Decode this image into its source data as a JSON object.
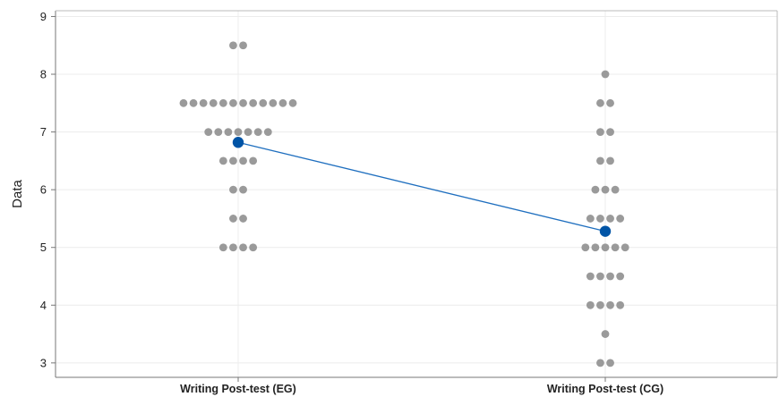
{
  "chart_data": {
    "type": "scatter",
    "subtype": "individual-value-plot",
    "title": "",
    "xlabel": "",
    "ylabel": "Data",
    "categories": [
      "Writing Post-test (EG)",
      "Writing Post-test (CG)"
    ],
    "ylim": [
      2.75,
      9.1
    ],
    "yticks": [
      3,
      4,
      5,
      6,
      7,
      8,
      9
    ],
    "grid": true,
    "series": [
      {
        "category": "Writing Post-test (EG)",
        "values": [
          8.5,
          8.5,
          7.5,
          7.5,
          7.5,
          7.5,
          7.5,
          7.5,
          7.5,
          7.5,
          7.5,
          7.5,
          7.5,
          7.5,
          7,
          7,
          7,
          7,
          7,
          7,
          7,
          6.5,
          6.5,
          6.5,
          6.5,
          6,
          6,
          5.5,
          5.5,
          5,
          5,
          5,
          5
        ]
      },
      {
        "category": "Writing Post-test (CG)",
        "values": [
          8,
          7.5,
          7.5,
          7,
          7,
          6.5,
          6.5,
          6,
          6,
          6,
          5.5,
          5.5,
          5.5,
          5.5,
          5,
          5,
          5,
          5,
          5,
          4.5,
          4.5,
          4.5,
          4.5,
          4,
          4,
          4,
          4,
          3.5,
          3,
          3
        ]
      }
    ],
    "means": [
      6.82,
      5.28
    ],
    "colors": {
      "points": "#9a9a9a",
      "mean": "#0054a6",
      "mean_line": "#1f6fbf",
      "grid": "#ececec",
      "axis": "#777777"
    }
  }
}
